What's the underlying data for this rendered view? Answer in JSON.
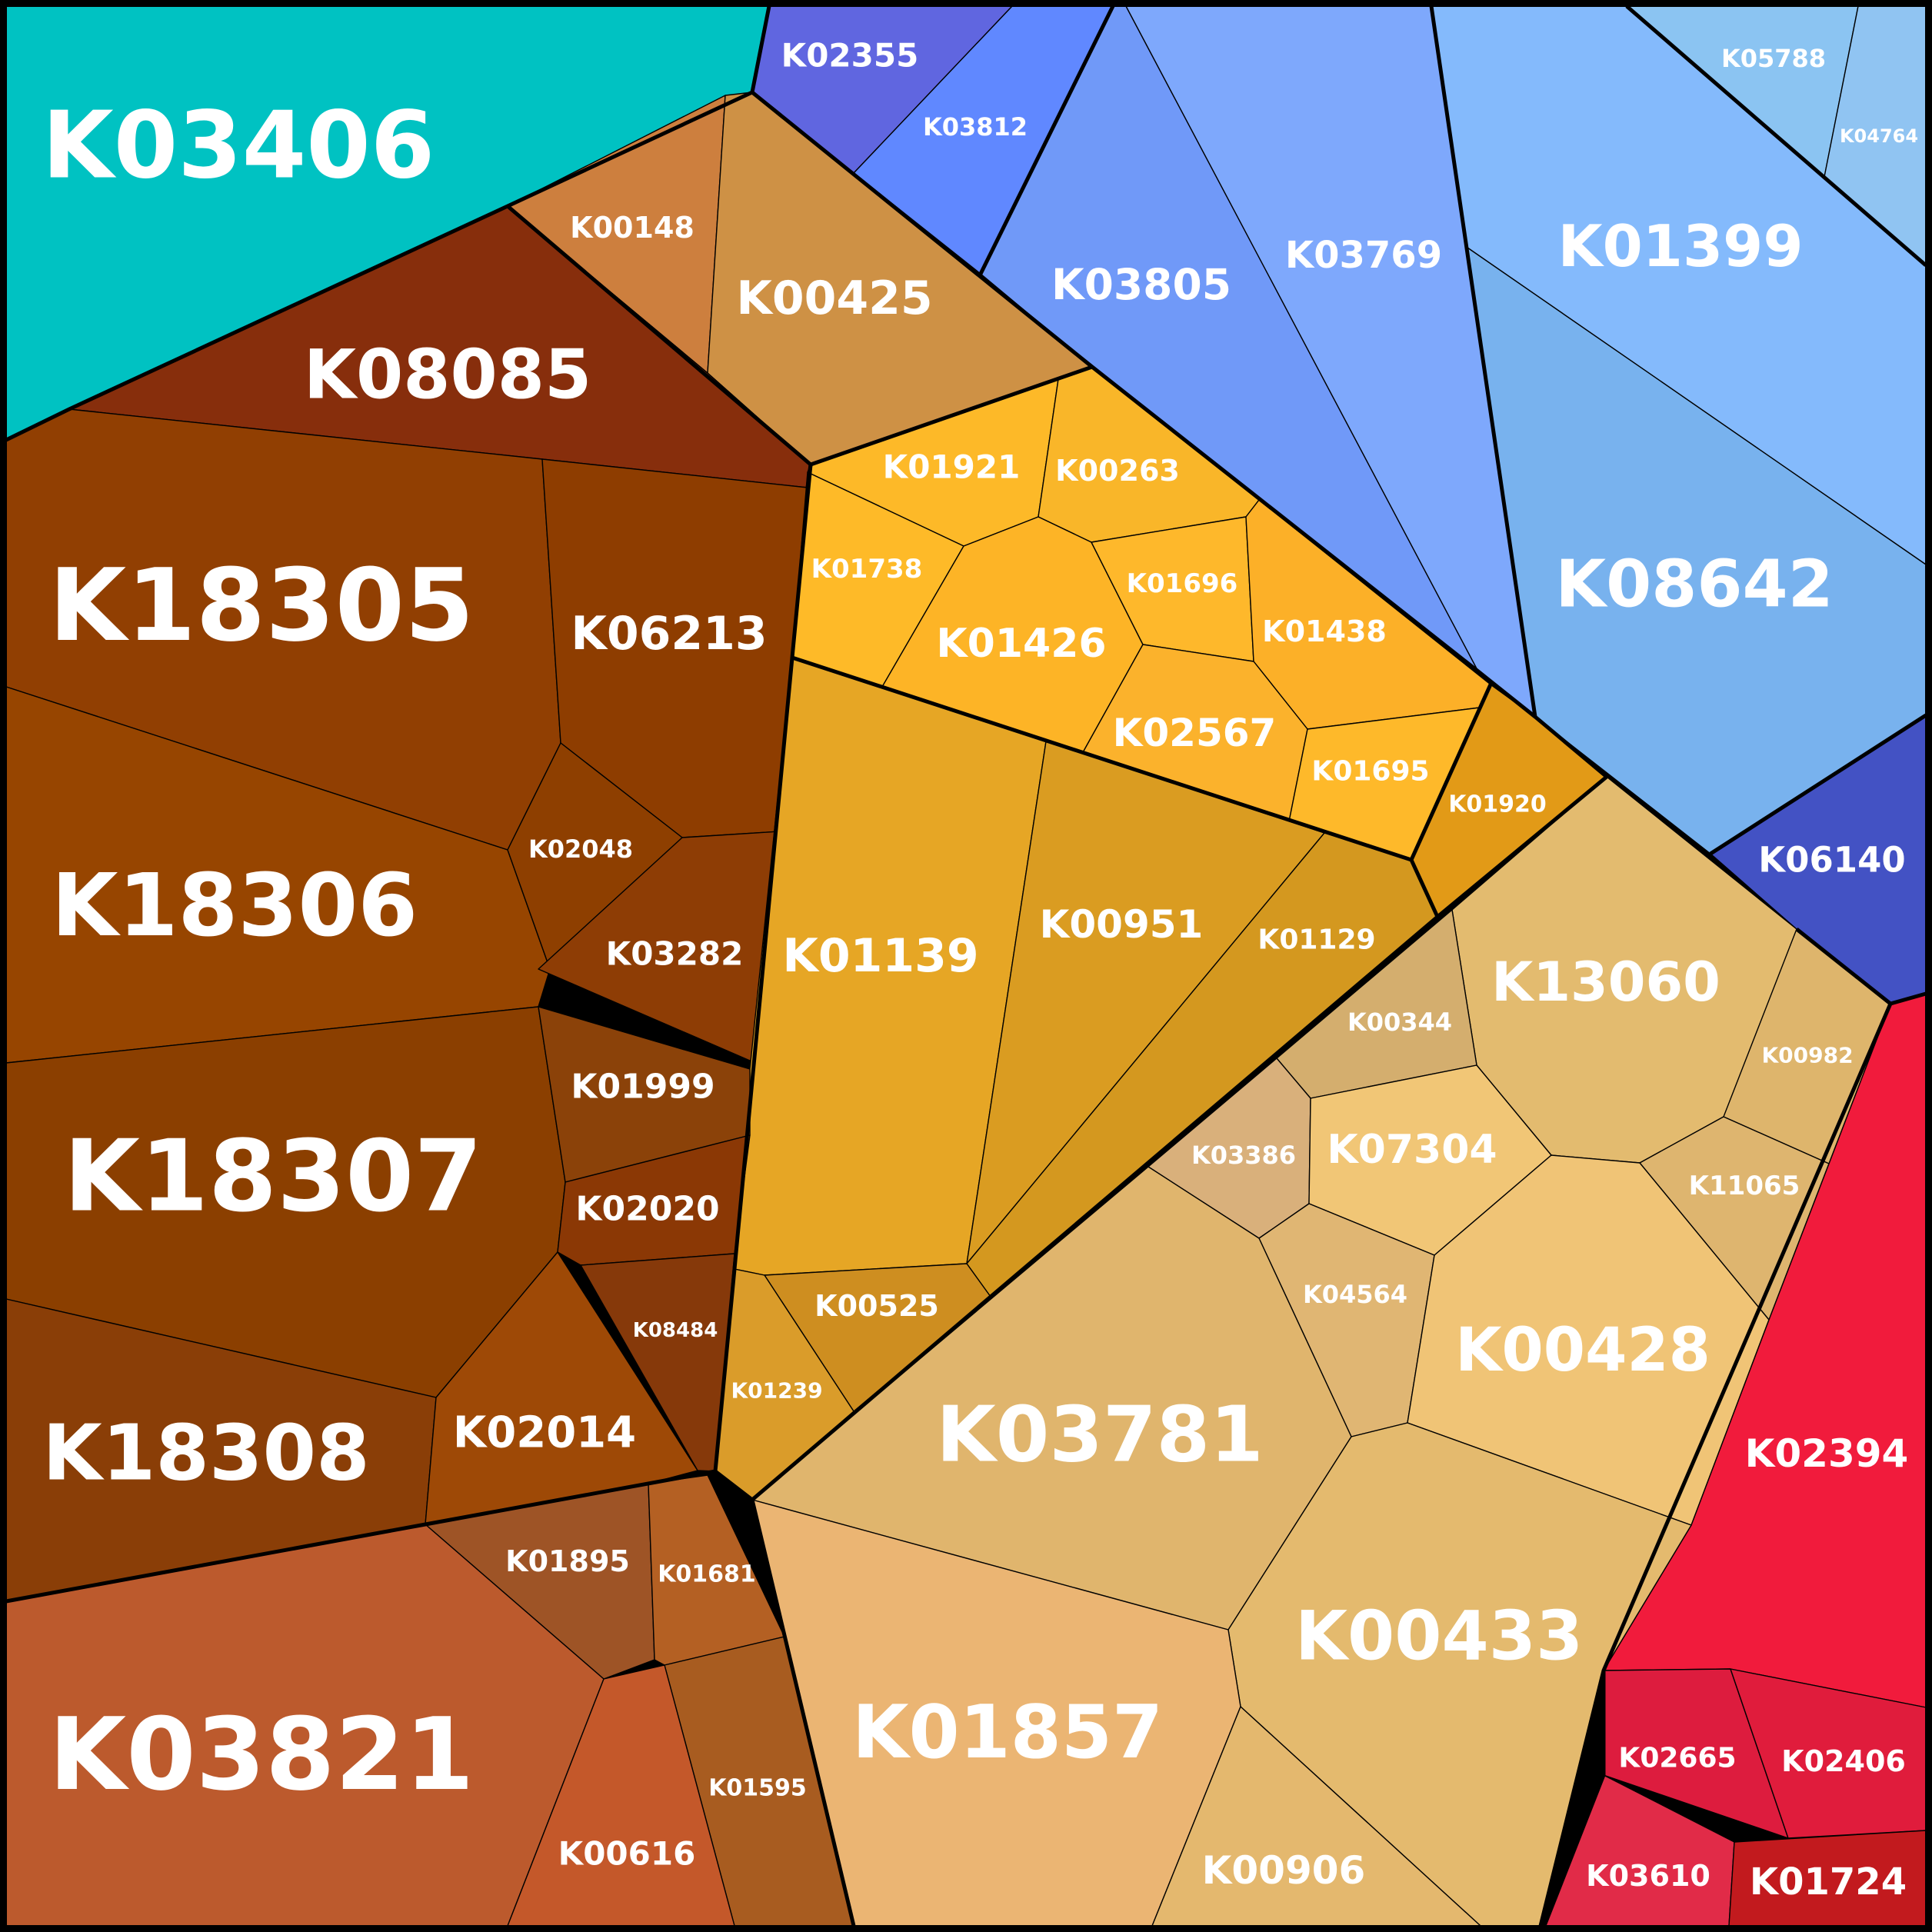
{
  "chart_data": {
    "type": "voronoi-treemap",
    "title": "",
    "cells": [
      {
        "label": "K03406",
        "color": "#00C2C2"
      },
      {
        "label": "K02355",
        "color": "#6066E0"
      },
      {
        "label": "K03812",
        "color": "#6088FF"
      },
      {
        "label": "K05788",
        "color": "#8BC4F2"
      },
      {
        "label": "K04764",
        "color": "#90C4F2"
      },
      {
        "label": "K00148",
        "color": "#CD7F3E"
      },
      {
        "label": "K00425",
        "color": "#CE9145"
      },
      {
        "label": "K08085",
        "color": "#872E0C"
      },
      {
        "label": "K03805",
        "color": "#7099F8"
      },
      {
        "label": "K03769",
        "color": "#7EA8FC"
      },
      {
        "label": "K01399",
        "color": "#84BAFC"
      },
      {
        "label": "K08642",
        "color": "#78B2EE"
      },
      {
        "label": "K06140",
        "color": "#4352C4"
      },
      {
        "label": "K18305",
        "color": "#913F02"
      },
      {
        "label": "K06213",
        "color": "#8E3D00"
      },
      {
        "label": "K01921",
        "color": "#FDB928"
      },
      {
        "label": "K00263",
        "color": "#F9B629"
      },
      {
        "label": "K01738",
        "color": "#FEBA28"
      },
      {
        "label": "K01426",
        "color": "#FDB426"
      },
      {
        "label": "K01696",
        "color": "#FEB82B"
      },
      {
        "label": "K01438",
        "color": "#FCB028"
      },
      {
        "label": "K02567",
        "color": "#FBB22C"
      },
      {
        "label": "K01695",
        "color": "#FEB92A"
      },
      {
        "label": "K01920",
        "color": "#E29A17"
      },
      {
        "label": "K18306",
        "color": "#974500"
      },
      {
        "label": "K02048",
        "color": "#8E3F00"
      },
      {
        "label": "K03282",
        "color": "#8E3D05"
      },
      {
        "label": "K01139",
        "color": "#E6A625"
      },
      {
        "label": "K00951",
        "color": "#DA9C21"
      },
      {
        "label": "K01129",
        "color": "#D4981F"
      },
      {
        "label": "K13060",
        "color": "#E3BB6F"
      },
      {
        "label": "K00344",
        "color": "#D4AE6E"
      },
      {
        "label": "K00982",
        "color": "#DEB56C"
      },
      {
        "label": "K18307",
        "color": "#8B3F00"
      },
      {
        "label": "K01999",
        "color": "#8B4209"
      },
      {
        "label": "K02020",
        "color": "#8B3805"
      },
      {
        "label": "K03386",
        "color": "#D9B07B"
      },
      {
        "label": "K07304",
        "color": "#F1C676"
      },
      {
        "label": "K11065",
        "color": "#DEB56F"
      },
      {
        "label": "K08484",
        "color": "#86390A"
      },
      {
        "label": "K00525",
        "color": "#CE8E20"
      },
      {
        "label": "K01239",
        "color": "#DA9C2A"
      },
      {
        "label": "K04564",
        "color": "#E0B673"
      },
      {
        "label": "K00428",
        "color": "#F0C476"
      },
      {
        "label": "K02394",
        "color": "#F11B3C"
      },
      {
        "label": "K18308",
        "color": "#8A3E07"
      },
      {
        "label": "K02014",
        "color": "#9E4906"
      },
      {
        "label": "K03781",
        "color": "#E0B56D"
      },
      {
        "label": "K01895",
        "color": "#9E5426"
      },
      {
        "label": "K01681",
        "color": "#B46023"
      },
      {
        "label": "K00433",
        "color": "#E4BA6E"
      },
      {
        "label": "K03821",
        "color": "#BC5A2D"
      },
      {
        "label": "K01595",
        "color": "#A85C20"
      },
      {
        "label": "K01857",
        "color": "#EBB573"
      },
      {
        "label": "K02665",
        "color": "#DD1C3E"
      },
      {
        "label": "K02406",
        "color": "#E01C3C"
      },
      {
        "label": "K00616",
        "color": "#C4582A"
      },
      {
        "label": "K00906",
        "color": "#E4B86E"
      },
      {
        "label": "K03610",
        "color": "#E12B48"
      },
      {
        "label": "K01724",
        "color": "#C21A1E"
      }
    ]
  }
}
